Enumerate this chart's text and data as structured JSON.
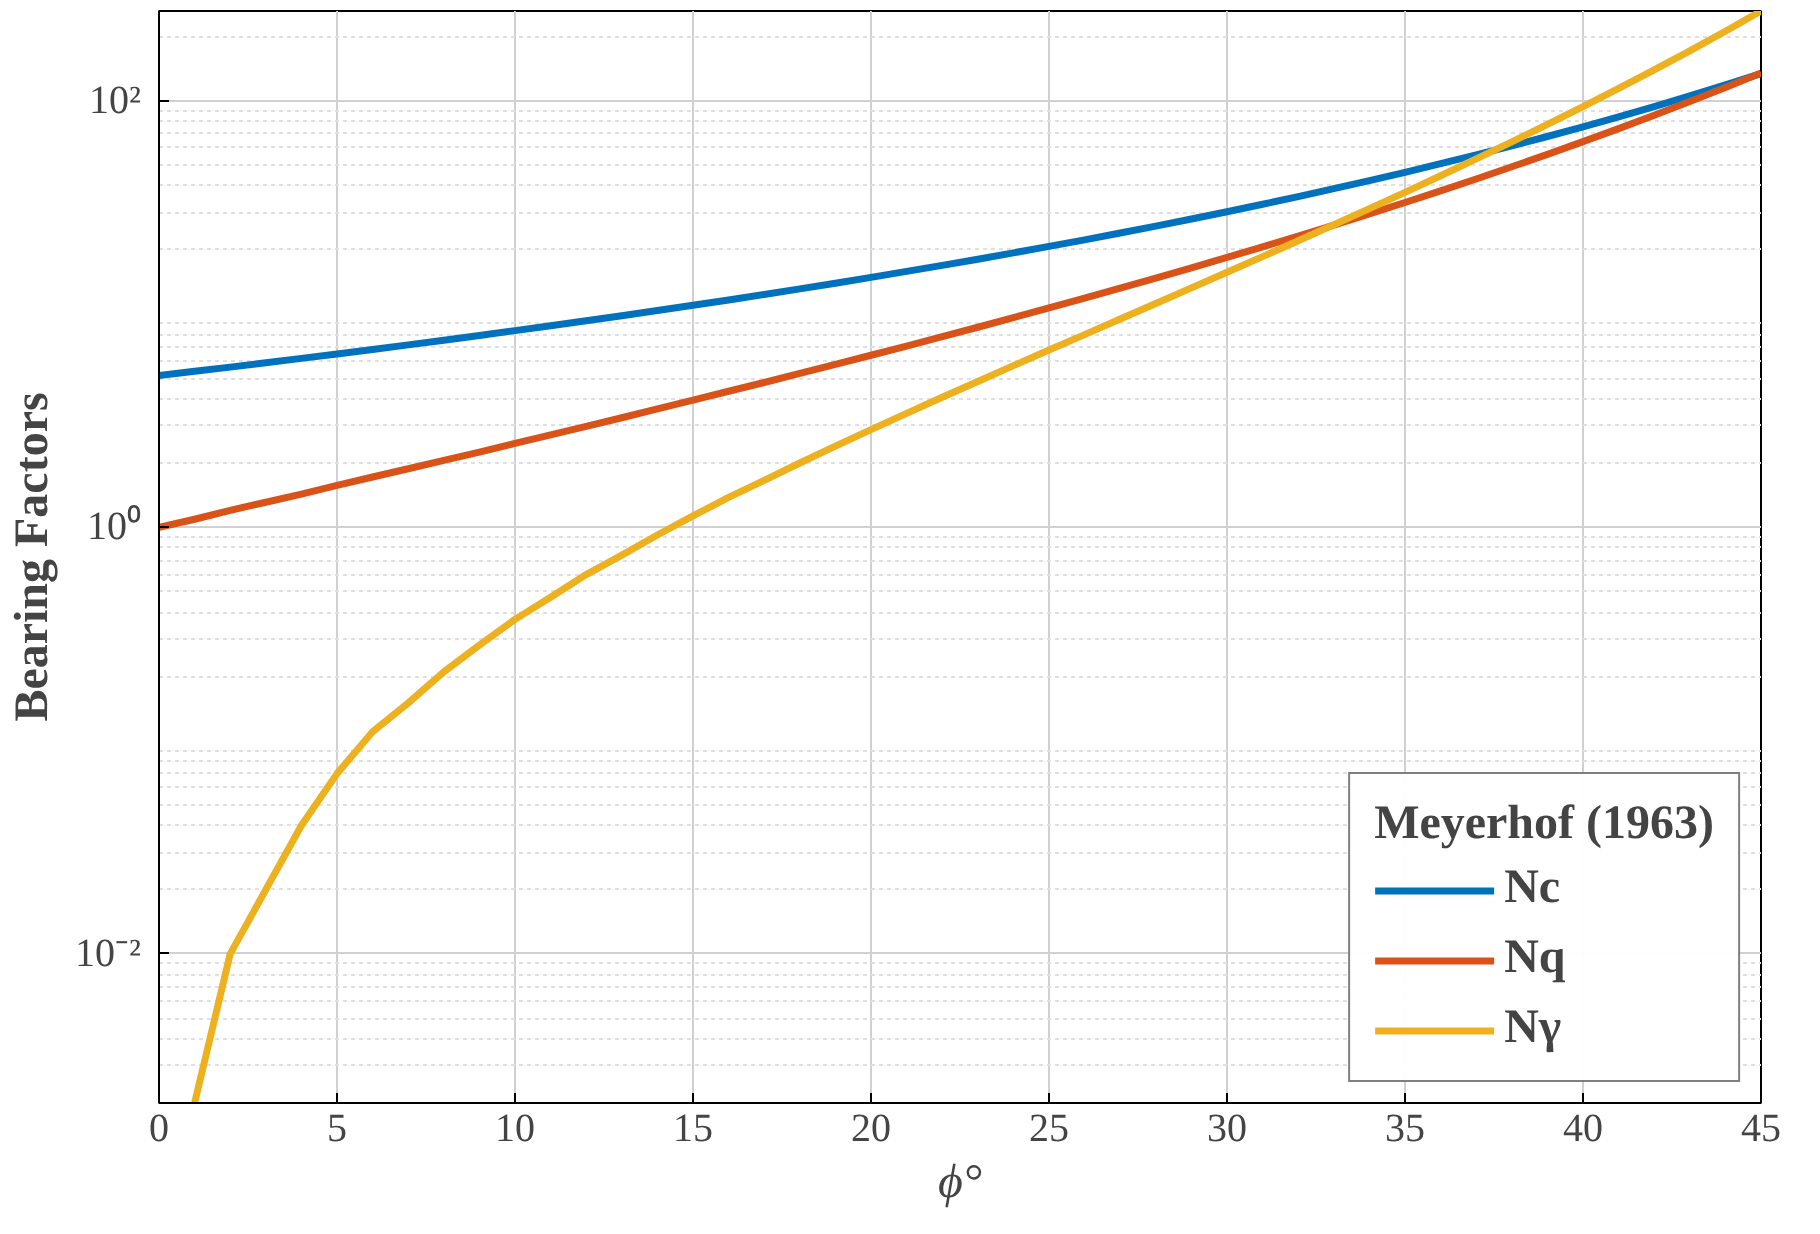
{
  "chart_data": {
    "type": "line",
    "xlabel": "ϕ°",
    "ylabel": "Bearing Factors",
    "legend_title": "Meyerhof (1963)",
    "x": [
      0,
      1,
      2,
      3,
      4,
      5,
      6,
      7,
      8,
      9,
      10,
      11,
      12,
      13,
      14,
      15,
      16,
      17,
      18,
      19,
      20,
      21,
      22,
      23,
      24,
      25,
      26,
      27,
      28,
      29,
      30,
      31,
      32,
      33,
      34,
      35,
      36,
      37,
      38,
      39,
      40,
      41,
      42,
      43,
      44,
      45
    ],
    "series": [
      {
        "name": "Nc",
        "color": "#0072bd",
        "values": [
          5.14,
          5.38,
          5.63,
          5.9,
          6.19,
          6.49,
          6.81,
          7.16,
          7.53,
          7.92,
          8.35,
          8.8,
          9.28,
          9.81,
          10.37,
          10.98,
          11.63,
          12.34,
          13.1,
          13.93,
          14.83,
          15.82,
          16.88,
          18.05,
          19.32,
          20.72,
          22.25,
          23.94,
          25.8,
          27.86,
          30.14,
          32.67,
          35.49,
          38.64,
          42.16,
          46.12,
          50.59,
          55.63,
          61.35,
          67.87,
          75.31,
          83.86,
          93.71,
          105.11,
          118.37,
          133.88
        ]
      },
      {
        "name": "Nq",
        "color": "#d95319",
        "values": [
          1.0,
          1.09,
          1.2,
          1.31,
          1.43,
          1.57,
          1.72,
          1.88,
          2.06,
          2.25,
          2.47,
          2.71,
          2.97,
          3.26,
          3.59,
          3.94,
          4.34,
          4.77,
          5.26,
          5.8,
          6.4,
          7.07,
          7.82,
          8.66,
          9.6,
          10.66,
          11.85,
          13.2,
          14.72,
          16.44,
          18.4,
          20.63,
          23.18,
          26.09,
          29.44,
          33.3,
          37.75,
          42.92,
          48.93,
          55.96,
          64.2,
          73.9,
          85.38,
          99.02,
          115.31,
          134.88
        ]
      },
      {
        "name": "Nγ",
        "color": "#edb120",
        "values": [
          null,
          0.002,
          0.01,
          0.02,
          0.04,
          0.07,
          0.11,
          0.15,
          0.21,
          0.28,
          0.37,
          0.47,
          0.6,
          0.74,
          0.92,
          1.13,
          1.38,
          1.66,
          2.0,
          2.4,
          2.87,
          3.42,
          4.07,
          4.82,
          5.72,
          6.77,
          8.0,
          9.46,
          11.19,
          13.24,
          15.67,
          18.56,
          22.02,
          26.17,
          31.15,
          37.15,
          44.43,
          53.27,
          64.07,
          77.33,
          93.69,
          113.99,
          139.32,
          171.14,
          211.41,
          262.74
        ]
      }
    ],
    "xlim": [
      0,
      45
    ],
    "xticks": [
      0,
      5,
      10,
      15,
      20,
      25,
      30,
      35,
      40,
      45
    ],
    "ylim": [
      0.002,
      263
    ],
    "yticks": [
      {
        "value": 0.01,
        "label": "10⁻²"
      },
      {
        "value": 1,
        "label": "10⁰"
      },
      {
        "value": 100,
        "label": "10²"
      }
    ],
    "log": "y",
    "grid": true,
    "legend": "bottom right",
    "line_style": "solid",
    "marker": "none"
  }
}
